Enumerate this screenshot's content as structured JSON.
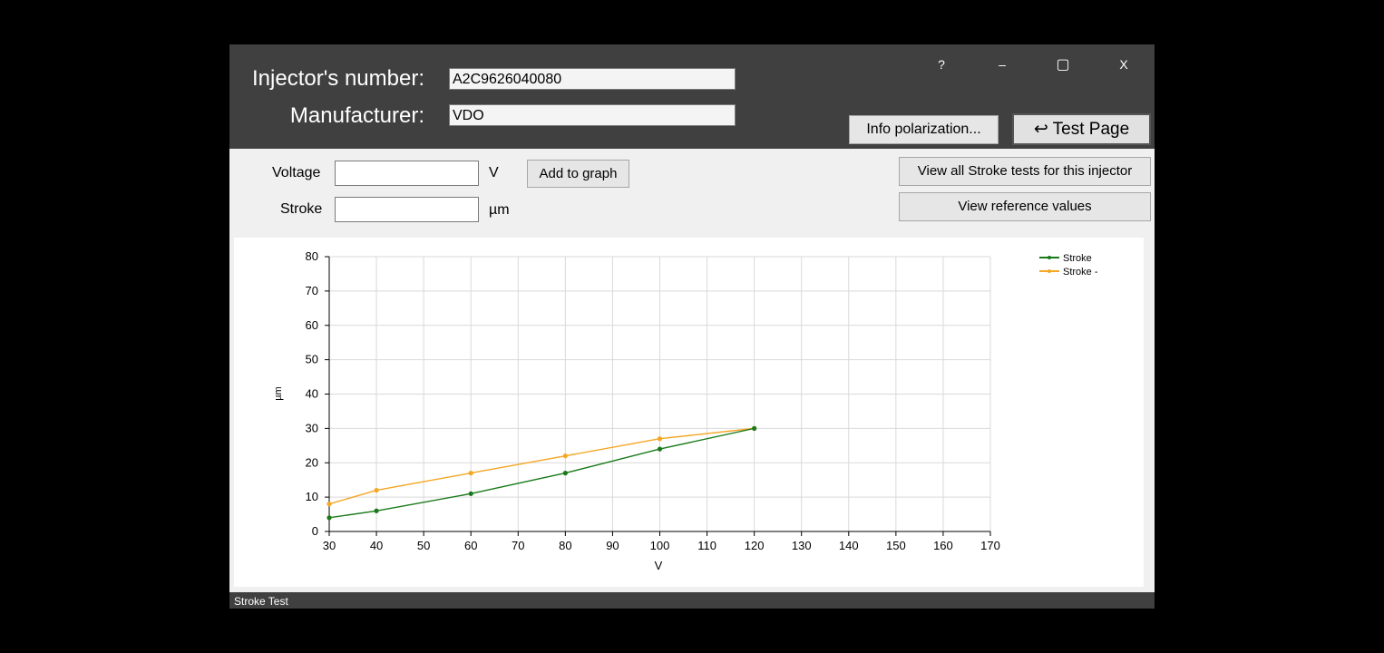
{
  "header": {
    "injector_label": "Injector's number:",
    "injector_value": "A2C9626040080",
    "manufacturer_label": "Manufacturer:",
    "manufacturer_value": "VDO",
    "window_controls": {
      "help": "?",
      "minimize": "–",
      "maximize": "▢",
      "close": "X"
    },
    "info_button": "Info polarization...",
    "test_page_button": "↩ Test Page"
  },
  "form": {
    "voltage_label": "Voltage",
    "voltage_unit": "V",
    "voltage_value": "",
    "stroke_label": "Stroke",
    "stroke_unit": "µm",
    "stroke_value": "",
    "add_button": "Add to graph",
    "view_all_button": "View all Stroke tests for this injector",
    "view_reference_button": "View reference values"
  },
  "chart_data": {
    "type": "line",
    "xlabel": "V",
    "ylabel": "µm",
    "xlim": [
      30,
      170
    ],
    "ylim": [
      0,
      80
    ],
    "x_ticks": [
      30,
      40,
      50,
      60,
      70,
      80,
      90,
      100,
      110,
      120,
      130,
      140,
      150,
      160,
      170
    ],
    "y_ticks": [
      0,
      10,
      20,
      30,
      40,
      50,
      60,
      70,
      80
    ],
    "grid": true,
    "legend_position": "top-right",
    "series": [
      {
        "name": "Stroke",
        "color": "#1a7a1a",
        "x": [
          30,
          40,
          60,
          80,
          100,
          120
        ],
        "y": [
          4,
          6,
          11,
          17,
          24,
          30
        ]
      },
      {
        "name": "Stroke -",
        "color": "#f5a623",
        "x": [
          30,
          40,
          60,
          80,
          100,
          120
        ],
        "y": [
          8,
          12,
          17,
          22,
          27,
          30
        ]
      }
    ]
  },
  "status_bar": {
    "text": "Stroke Test"
  }
}
